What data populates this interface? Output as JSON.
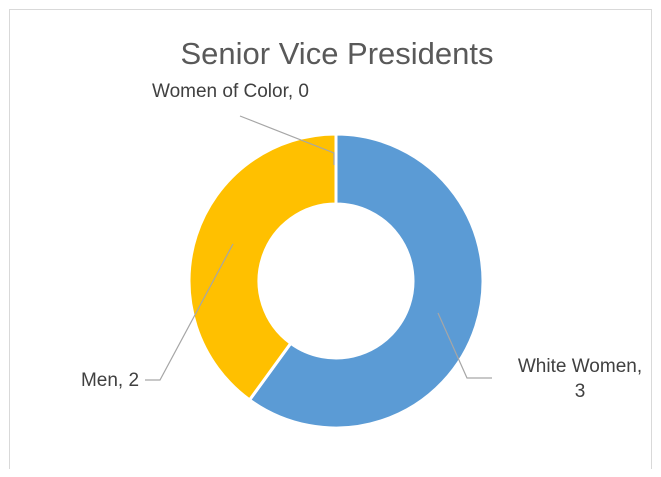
{
  "chart_data": {
    "type": "pie",
    "subtype": "donut",
    "title": "Senior Vice Presidents",
    "categories": [
      "White Women",
      "Women of Color",
      "Men"
    ],
    "values": [
      3,
      0,
      2
    ],
    "colors": [
      "#5b9bd5",
      "#ed7d31",
      "#ffc000"
    ],
    "labels": [
      {
        "lines": [
          "White Women,",
          "3"
        ]
      },
      {
        "lines": [
          "Women of Color, 0"
        ]
      },
      {
        "lines": [
          "Men, 2"
        ]
      }
    ],
    "legend": "none"
  }
}
